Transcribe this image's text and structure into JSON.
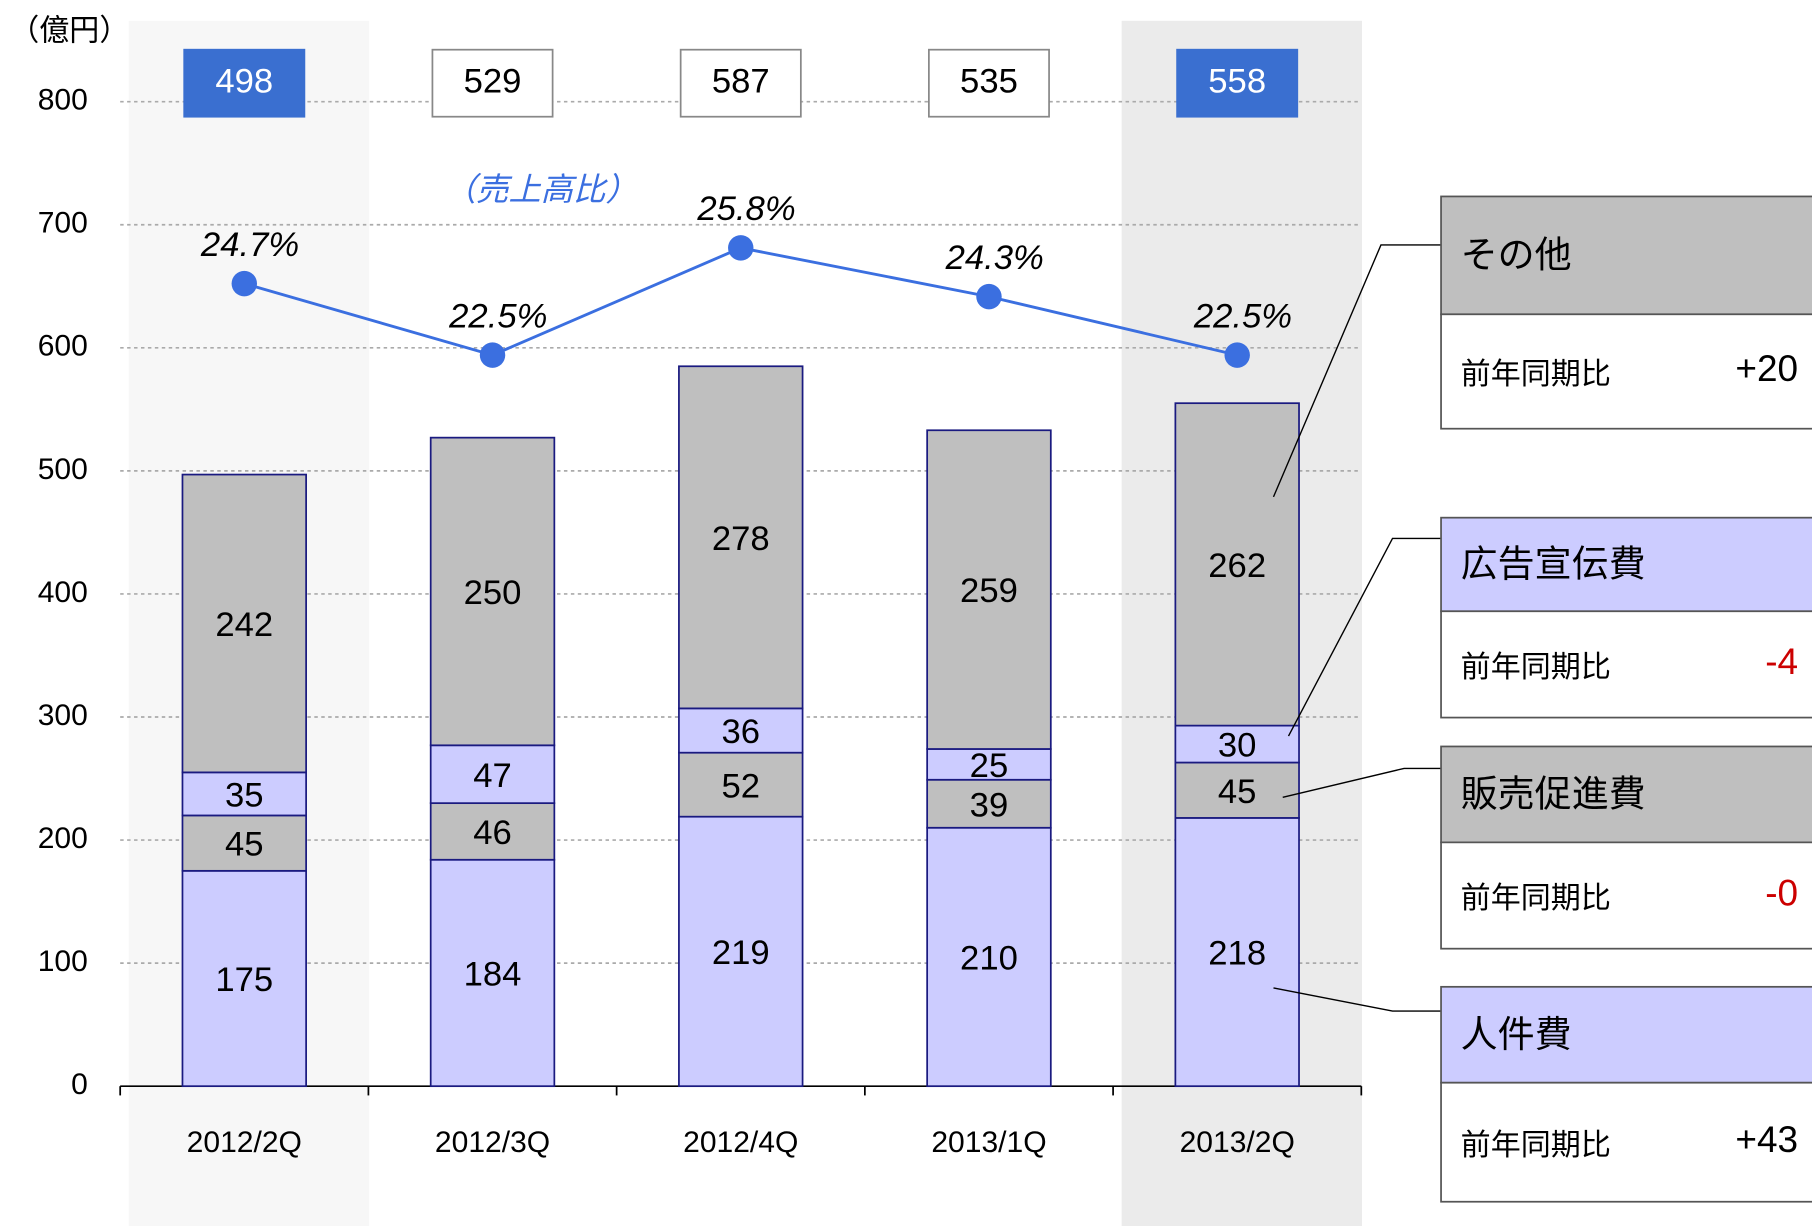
{
  "chart_data": {
    "type": "bar",
    "stacked": true,
    "y_unit_label": "（億円）",
    "categories": [
      "2012/2Q",
      "2012/3Q",
      "2012/4Q",
      "2013/1Q",
      "2013/2Q"
    ],
    "ylim": [
      0,
      800
    ],
    "yticks": [
      0,
      100,
      200,
      300,
      400,
      500,
      600,
      700,
      800
    ],
    "grid": true,
    "highlight": [
      0,
      4
    ],
    "highlight_colors": [
      "#f7f7f7",
      "#ebebeb"
    ],
    "totals": [
      498,
      529,
      587,
      535,
      558
    ],
    "total_box_color": "#3a6fd0",
    "series": [
      {
        "name": "人件費",
        "color": "#ccccff",
        "values": [
          175,
          184,
          219,
          210,
          218
        ],
        "yoy_label": "前年同期比",
        "yoy": "+43",
        "yoy_color": "#000000"
      },
      {
        "name": "販売促進費",
        "color": "#bfbfbf",
        "values": [
          45,
          46,
          52,
          39,
          45
        ],
        "yoy_label": "前年同期比",
        "yoy": "-0",
        "yoy_color": "#cc0000"
      },
      {
        "name": "広告宣伝費",
        "color": "#ccccff",
        "values": [
          35,
          47,
          36,
          25,
          30
        ],
        "yoy_label": "前年同期比",
        "yoy": "-4",
        "yoy_color": "#cc0000"
      },
      {
        "name": "その他",
        "color": "#bfbfbf",
        "values": [
          242,
          250,
          278,
          259,
          262
        ],
        "yoy_label": "前年同期比",
        "yoy": "+20",
        "yoy_color": "#000000"
      }
    ],
    "line": {
      "name": "（売上高比）",
      "type": "line",
      "axis": "y2",
      "color": "#3b6fe0",
      "values": [
        24.7,
        22.5,
        25.8,
        24.3,
        22.5
      ],
      "value_labels": [
        "24.7%",
        "22.5%",
        "25.8%",
        "24.3%",
        "22.5%"
      ]
    },
    "y2lim": [
      0,
      30.3
    ]
  }
}
